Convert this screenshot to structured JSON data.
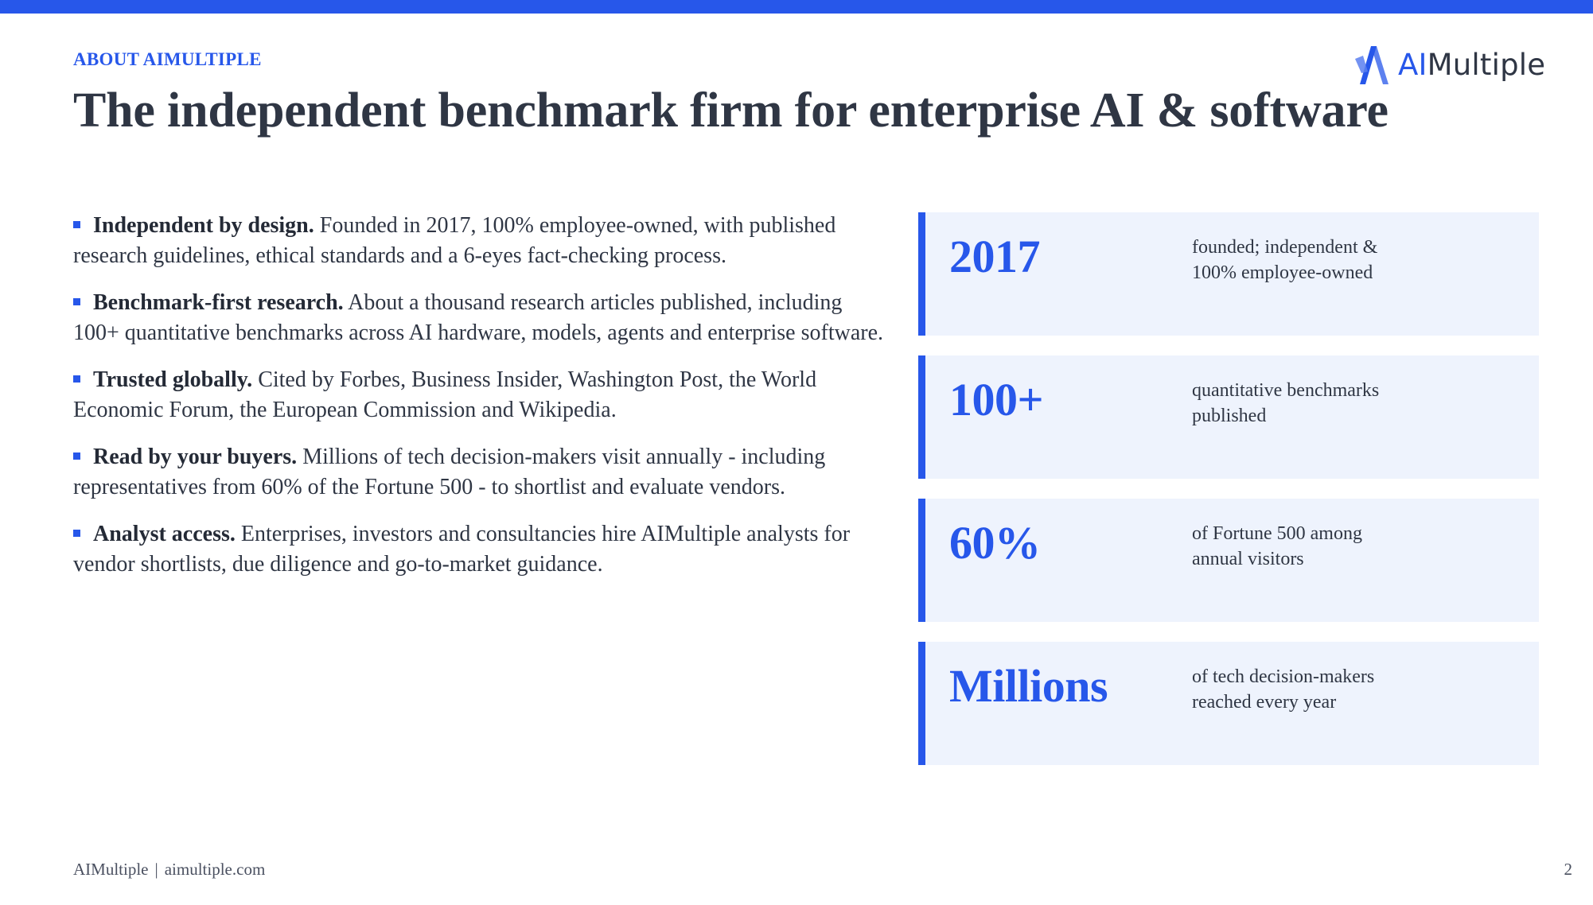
{
  "eyebrow": "ABOUT AIMULTIPLE",
  "title": "The independent benchmark firm for enterprise AI & software",
  "logo": {
    "ai": "AI",
    "rest": "Multiple",
    "brand_color": "#2757ea"
  },
  "bullets": [
    {
      "lead": "Independent by design.",
      "text": " Founded in 2017, 100% employee-owned, with published research guidelines, ethical standards and a 6-eyes fact-checking process."
    },
    {
      "lead": "Benchmark-first research.",
      "text": " About a thousand research articles published, including 100+ quantitative benchmarks across AI hardware, models, agents and enterprise software."
    },
    {
      "lead": "Trusted globally.",
      "text": " Cited by Forbes, Business Insider, Washington Post, the World Economic Forum, the European Commission and Wikipedia."
    },
    {
      "lead": "Read by your buyers.",
      "text": " Millions of tech decision-makers visit annually - including representatives from 60% of the Fortune 500 - to shortlist and evaluate vendors."
    },
    {
      "lead": "Analyst access.",
      "text": " Enterprises, investors and consultancies hire AIMultiple analysts for vendor shortlists, due diligence and go-to-market guidance."
    }
  ],
  "stats": [
    {
      "value": "2017",
      "line1": "founded; independent &",
      "line2": "100% employee-owned"
    },
    {
      "value": "100+",
      "line1": "quantitative benchmarks",
      "line2": "published"
    },
    {
      "value": "60%",
      "line1": "of Fortune 500 among",
      "line2": "annual visitors"
    },
    {
      "value": "Millions",
      "line1": "of tech decision-makers",
      "line2": "reached every year"
    }
  ],
  "footer": {
    "brand": "AIMultiple",
    "separator": "|",
    "site": "aimultiple.com"
  },
  "page_number": "2",
  "colors": {
    "accent": "#2757ea",
    "card_bg": "#eef3fd",
    "text": "#2f3644"
  }
}
